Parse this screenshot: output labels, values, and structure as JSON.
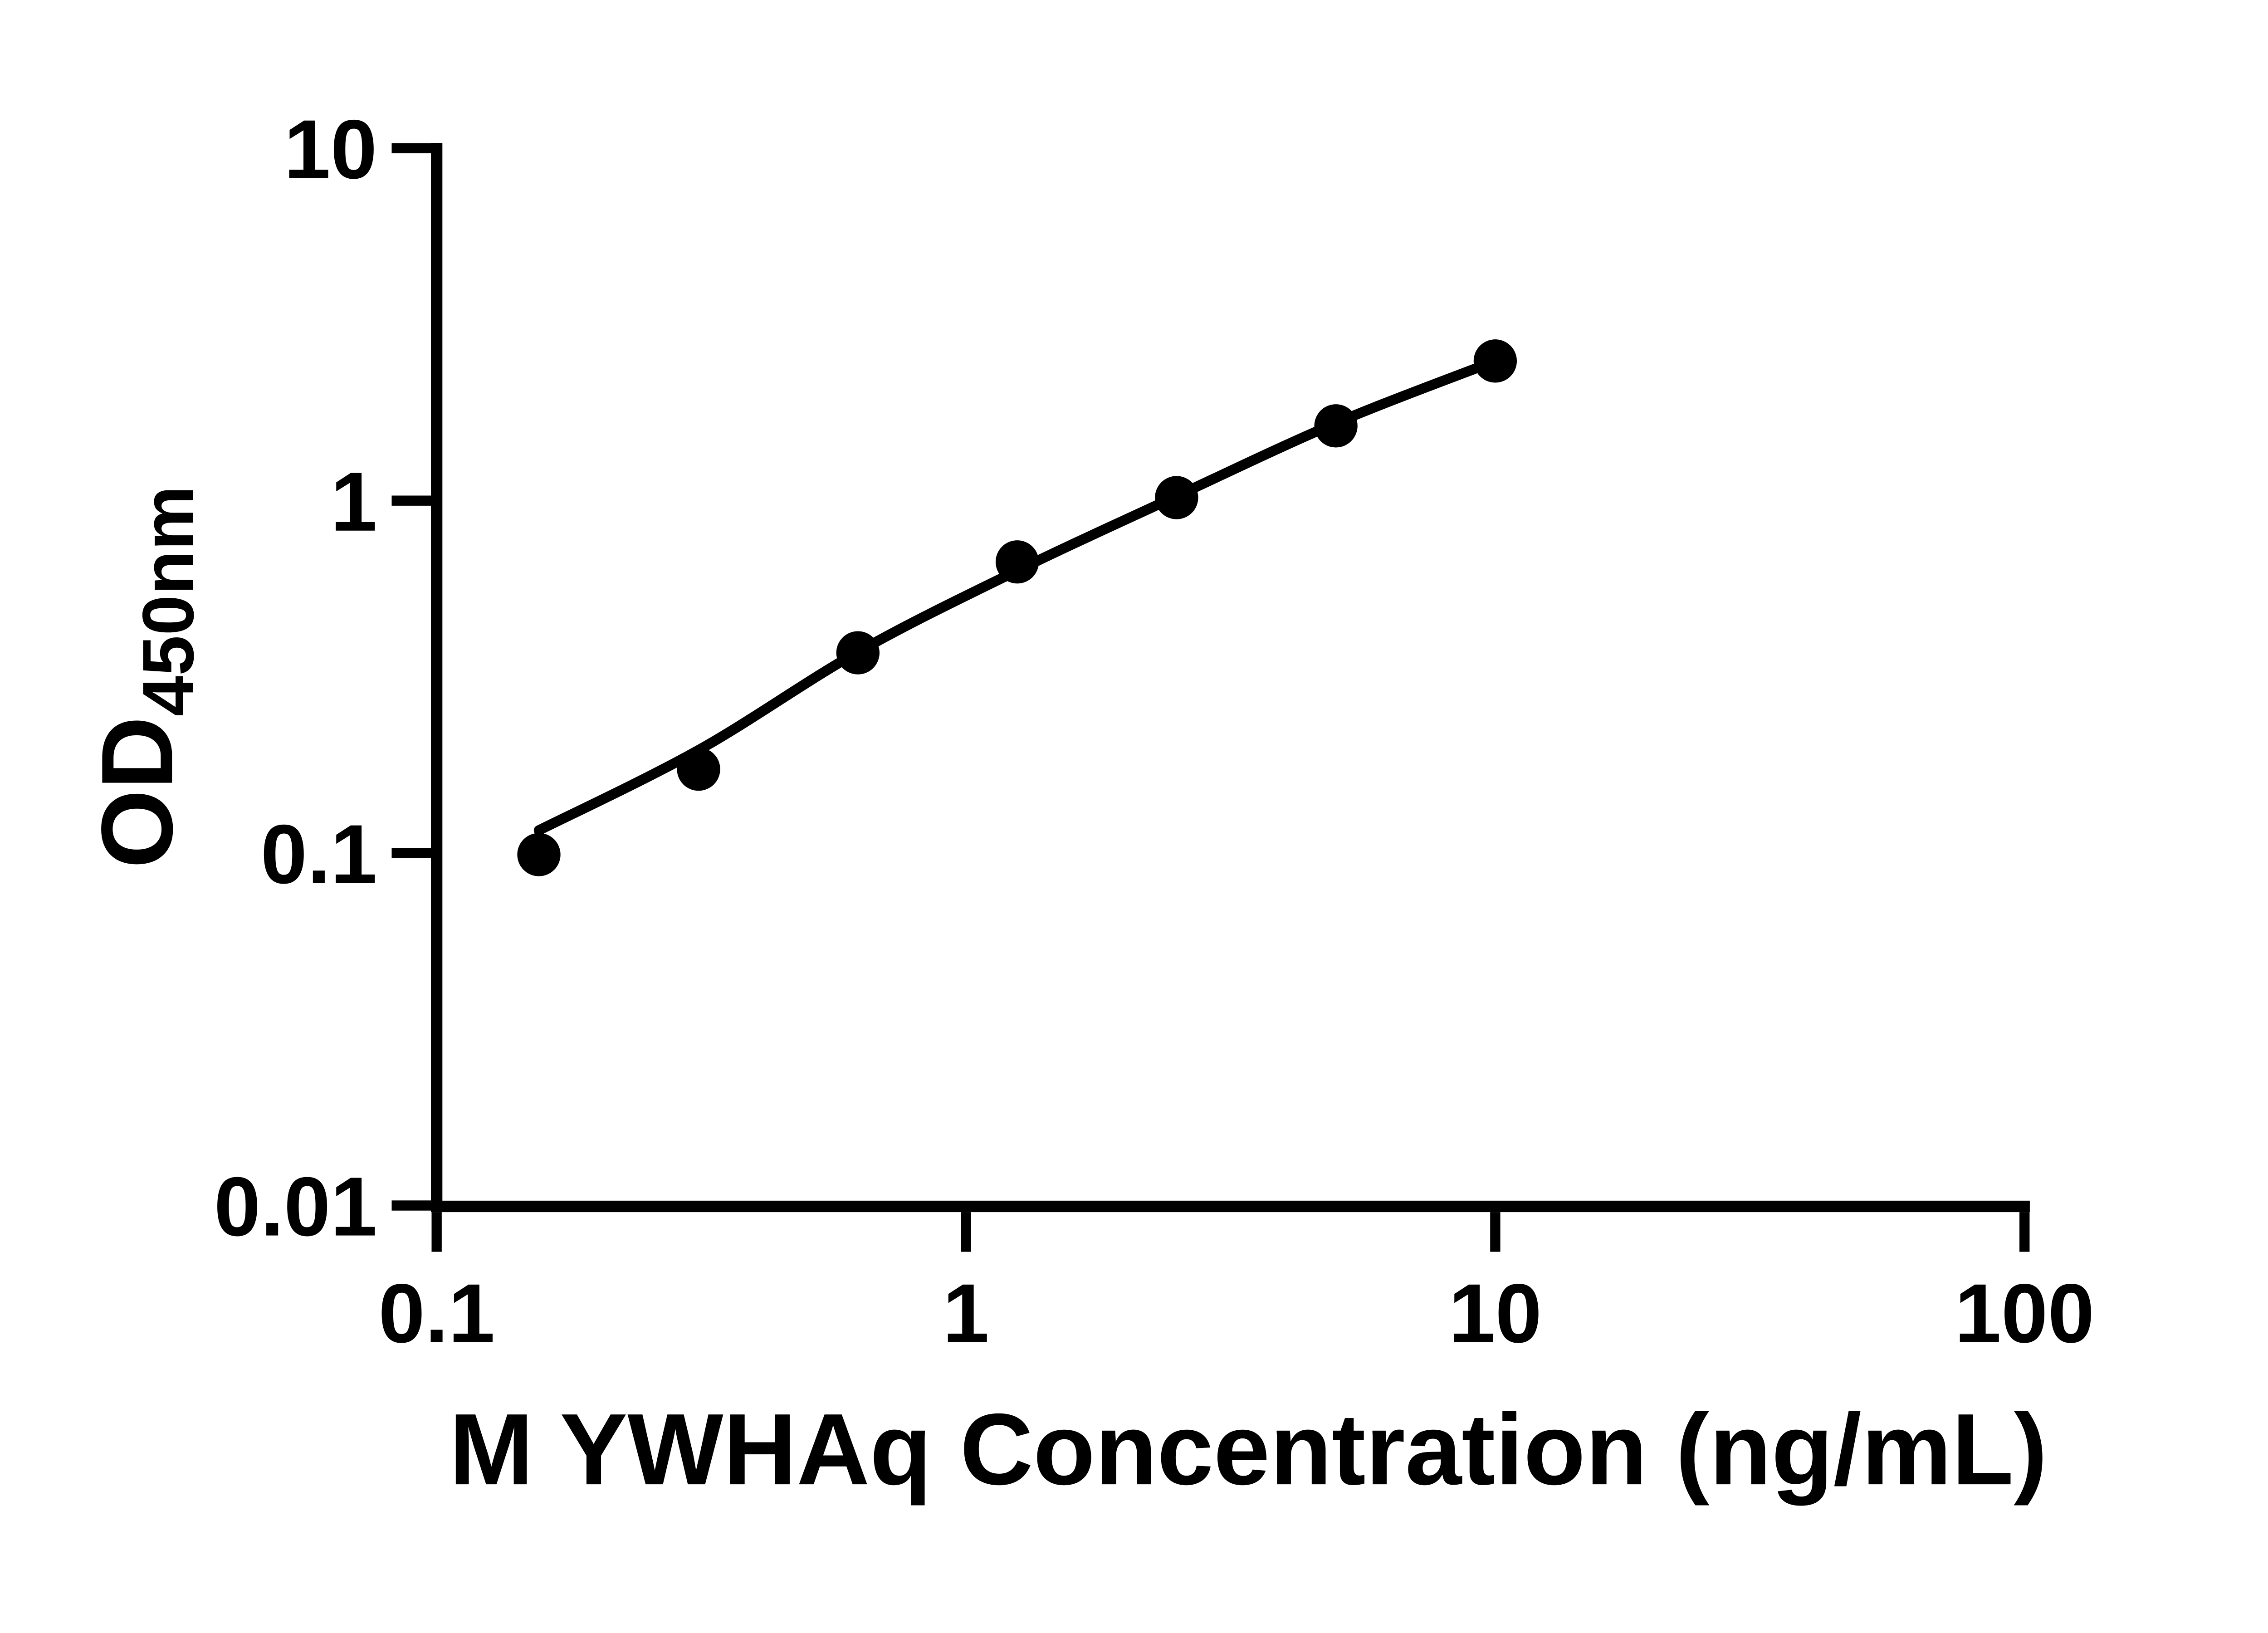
{
  "colors": {
    "ink": "#000000",
    "background": "#ffffff"
  },
  "y_axis": {
    "title_main": "OD",
    "title_sub": "450nm",
    "scale": "log",
    "range": [
      0.01,
      10
    ],
    "ticks": [
      {
        "value": 10,
        "label": "10"
      },
      {
        "value": 1,
        "label": "1"
      },
      {
        "value": 0.1,
        "label": "0.1"
      },
      {
        "value": 0.01,
        "label": "0.01"
      }
    ]
  },
  "x_axis": {
    "title": "M YWHAq Concentration (ng/mL)",
    "scale": "log",
    "range": [
      0.1,
      100
    ],
    "ticks": [
      {
        "value": 0.1,
        "label": "0.1"
      },
      {
        "value": 1,
        "label": "1"
      },
      {
        "value": 10,
        "label": "10"
      },
      {
        "value": 100,
        "label": "100"
      }
    ]
  },
  "chart_data": {
    "type": "scatter",
    "title": "",
    "xlabel": "M YWHAq Concentration (ng/mL)",
    "ylabel": "OD450nm",
    "x_scale": "log",
    "y_scale": "log",
    "xlim": [
      0.1,
      100
    ],
    "ylim": [
      0.01,
      10
    ],
    "x_ticks": [
      0.1,
      1,
      10,
      100
    ],
    "y_ticks": [
      0.01,
      0.1,
      1,
      10
    ],
    "grid": false,
    "legend": "none",
    "series": [
      {
        "name": "standard curve points",
        "type": "scatter",
        "marker": "filled-circle",
        "color": "#000000",
        "x": [
          0.156,
          0.3125,
          0.625,
          1.25,
          2.5,
          5,
          10
        ],
        "y": [
          0.099,
          0.173,
          0.37,
          0.67,
          1.02,
          1.63,
          2.49
        ]
      },
      {
        "name": "4PL fit curve",
        "type": "line",
        "color": "#000000",
        "x": [
          0.156,
          0.3125,
          0.625,
          1.25,
          2.5,
          5,
          10
        ],
        "y": [
          0.116,
          0.196,
          0.372,
          0.633,
          1.03,
          1.66,
          2.49
        ]
      }
    ]
  }
}
